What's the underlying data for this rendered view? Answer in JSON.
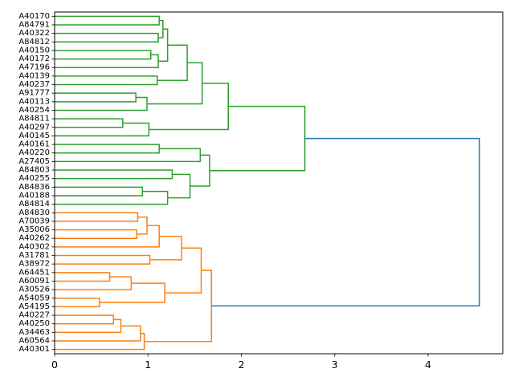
{
  "chart_data": {
    "type": "dendrogram",
    "orientation": "right",
    "xlim": [
      0,
      4.8
    ],
    "xticks": [
      "0",
      "1",
      "2",
      "3",
      "4"
    ],
    "xtick_values": [
      0,
      1,
      2,
      3,
      4
    ],
    "grid": false,
    "colors": {
      "cluster_1": "#2ca02c",
      "cluster_2": "#ff7f0e",
      "link_above_threshold": "#1f77b4"
    },
    "leaves": [
      "A40170",
      "A84791",
      "A40322",
      "A84812",
      "A40150",
      "A40172",
      "A47196",
      "A40139",
      "A40237",
      "A91777",
      "A40113",
      "A40254",
      "A84811",
      "A40297",
      "A40145",
      "A40161",
      "A40220",
      "A27405",
      "A84803",
      "A40255",
      "A84836",
      "A40188",
      "A84814",
      "A84830",
      "A70039",
      "A35006",
      "A40262",
      "A40302",
      "A31781",
      "A38972",
      "A64451",
      "A60091",
      "A30526",
      "A54059",
      "A54195",
      "A40227",
      "A40250",
      "A34463",
      "A60564",
      "A40301"
    ],
    "merges": [
      {
        "a": "L0",
        "b": "L1",
        "h": 1.12,
        "c": "#2ca02c"
      },
      {
        "a": "L2",
        "b": "L3",
        "h": 1.11,
        "c": "#2ca02c"
      },
      {
        "a": "N0",
        "b": "N1",
        "h": 1.16,
        "c": "#2ca02c"
      },
      {
        "a": "L4",
        "b": "L5",
        "h": 1.03,
        "c": "#2ca02c"
      },
      {
        "a": "N3",
        "b": "L6",
        "h": 1.11,
        "c": "#2ca02c"
      },
      {
        "a": "N2",
        "b": "N4",
        "h": 1.21,
        "c": "#2ca02c"
      },
      {
        "a": "L7",
        "b": "L8",
        "h": 1.1,
        "c": "#2ca02c"
      },
      {
        "a": "N5",
        "b": "N6",
        "h": 1.42,
        "c": "#2ca02c"
      },
      {
        "a": "L9",
        "b": "L10",
        "h": 0.87,
        "c": "#2ca02c"
      },
      {
        "a": "N8",
        "b": "L11",
        "h": 0.99,
        "c": "#2ca02c"
      },
      {
        "a": "N7",
        "b": "N9",
        "h": 1.58,
        "c": "#2ca02c"
      },
      {
        "a": "L12",
        "b": "L13",
        "h": 0.73,
        "c": "#2ca02c"
      },
      {
        "a": "N11",
        "b": "L14",
        "h": 1.01,
        "c": "#2ca02c"
      },
      {
        "a": "N10",
        "b": "N12",
        "h": 1.86,
        "c": "#2ca02c"
      },
      {
        "a": "L15",
        "b": "L16",
        "h": 1.12,
        "c": "#2ca02c"
      },
      {
        "a": "N14",
        "b": "L17",
        "h": 1.56,
        "c": "#2ca02c"
      },
      {
        "a": "L18",
        "b": "L19",
        "h": 1.26,
        "c": "#2ca02c"
      },
      {
        "a": "L20",
        "b": "L21",
        "h": 0.94,
        "c": "#2ca02c"
      },
      {
        "a": "N17",
        "b": "L22",
        "h": 1.21,
        "c": "#2ca02c"
      },
      {
        "a": "N16",
        "b": "N18",
        "h": 1.45,
        "c": "#2ca02c"
      },
      {
        "a": "N15",
        "b": "N19",
        "h": 1.66,
        "c": "#2ca02c"
      },
      {
        "a": "N13",
        "b": "N20",
        "h": 2.68,
        "c": "#2ca02c"
      },
      {
        "a": "L23",
        "b": "L24",
        "h": 0.89,
        "c": "#ff7f0e"
      },
      {
        "a": "L25",
        "b": "L26",
        "h": 0.88,
        "c": "#ff7f0e"
      },
      {
        "a": "N22",
        "b": "N23",
        "h": 0.99,
        "c": "#ff7f0e"
      },
      {
        "a": "N24",
        "b": "L27",
        "h": 1.12,
        "c": "#ff7f0e"
      },
      {
        "a": "L28",
        "b": "L29",
        "h": 1.02,
        "c": "#ff7f0e"
      },
      {
        "a": "N25",
        "b": "N26",
        "h": 1.36,
        "c": "#ff7f0e"
      },
      {
        "a": "L30",
        "b": "L31",
        "h": 0.59,
        "c": "#ff7f0e"
      },
      {
        "a": "N28",
        "b": "L32",
        "h": 0.82,
        "c": "#ff7f0e"
      },
      {
        "a": "L33",
        "b": "L34",
        "h": 0.48,
        "c": "#ff7f0e"
      },
      {
        "a": "N29",
        "b": "N30",
        "h": 1.18,
        "c": "#ff7f0e"
      },
      {
        "a": "N27",
        "b": "N31",
        "h": 1.57,
        "c": "#ff7f0e"
      },
      {
        "a": "L35",
        "b": "L36",
        "h": 0.63,
        "c": "#ff7f0e"
      },
      {
        "a": "N33",
        "b": "L37",
        "h": 0.71,
        "c": "#ff7f0e"
      },
      {
        "a": "N34",
        "b": "L38",
        "h": 0.92,
        "c": "#ff7f0e"
      },
      {
        "a": "N35",
        "b": "L39",
        "h": 0.96,
        "c": "#ff7f0e"
      },
      {
        "a": "N32",
        "b": "N36",
        "h": 1.68,
        "c": "#ff7f0e"
      },
      {
        "a": "N21",
        "b": "N37",
        "h": 4.55,
        "c": "#1f77b4"
      }
    ]
  }
}
